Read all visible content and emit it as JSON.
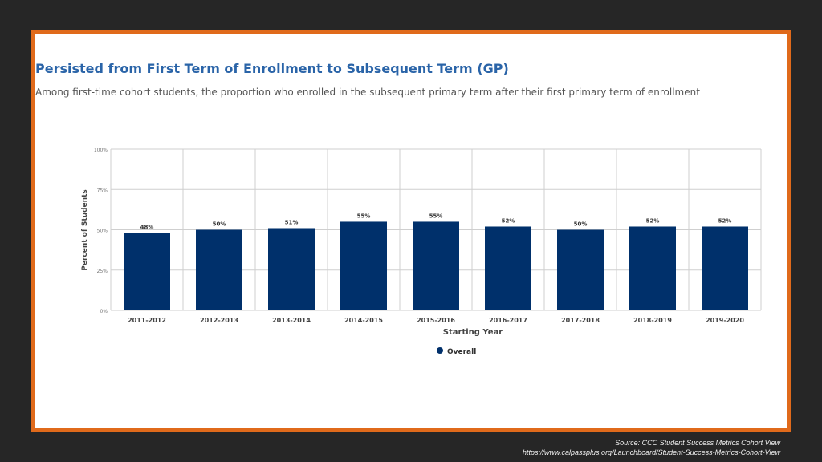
{
  "header": {
    "title": "Persisted from First Term of Enrollment to Subsequent Term (GP)",
    "subtitle": "Among first-time cohort students, the proportion who enrolled in the subsequent primary term after their first primary term of enrollment"
  },
  "source": {
    "line1": "Source:  CCC Student Success Metrics Cohort View",
    "line2": "https://www.calpassplus.org/Launchboard/Student-Success-Metrics-Cohort-View"
  },
  "colors": {
    "bar": "#00306b",
    "frame": "#e06a1b",
    "title": "#2a64a8",
    "background": "#262626"
  },
  "chart_data": {
    "type": "bar",
    "title": "Persisted from First Term of Enrollment to Subsequent Term (GP)",
    "subtitle": "Among first-time cohort students, the proportion who enrolled in the subsequent primary term after their first primary term of enrollment",
    "xlabel": "Starting Year",
    "ylabel": "Percent of Students",
    "ylim": [
      0,
      100
    ],
    "yticks": [
      "0%",
      "25%",
      "50%",
      "75%",
      "100%"
    ],
    "categories": [
      "2011-2012",
      "2012-2013",
      "2013-2014",
      "2014-2015",
      "2015-2016",
      "2016-2017",
      "2017-2018",
      "2018-2019",
      "2019-2020"
    ],
    "series": [
      {
        "name": "Overall",
        "values": [
          48,
          50,
          51,
          55,
          55,
          52,
          50,
          52,
          52
        ]
      }
    ],
    "data_labels": [
      "48%",
      "50%",
      "51%",
      "55%",
      "55%",
      "52%",
      "50%",
      "52%",
      "52%"
    ],
    "legend": "bottom-center",
    "grid": true
  }
}
